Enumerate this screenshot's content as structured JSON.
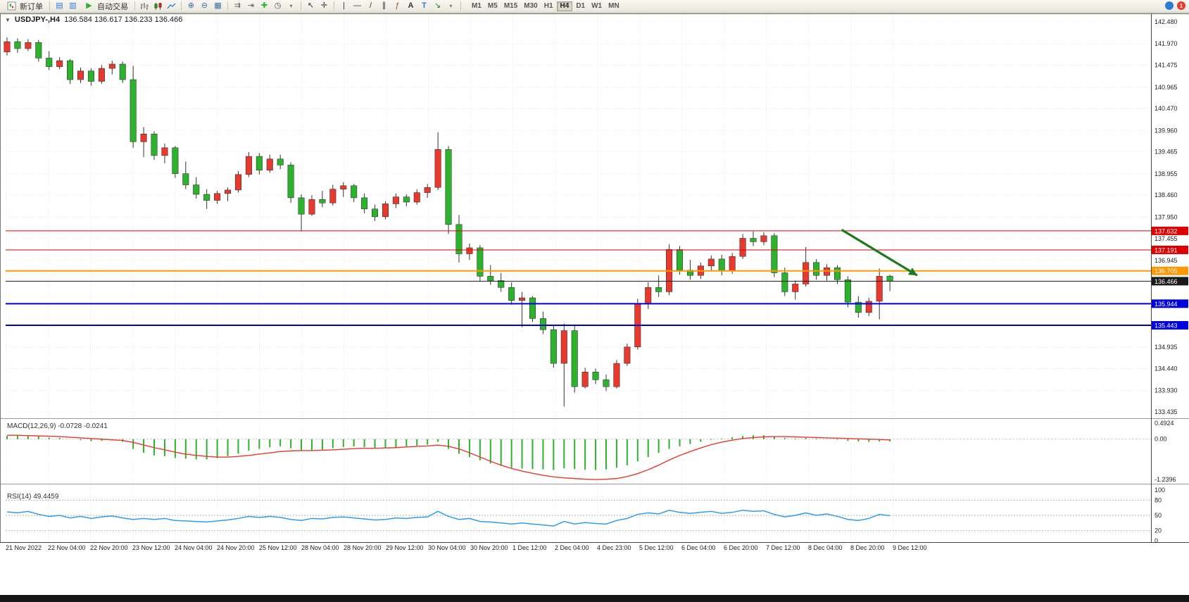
{
  "toolbar": {
    "new_order_label": "新订单",
    "autotrading_label": "自动交易",
    "timeframes": [
      "M1",
      "M5",
      "M15",
      "M30",
      "H1",
      "H4",
      "D1",
      "W1",
      "MN"
    ],
    "active_timeframe": "H4",
    "badge_count": "1"
  },
  "chart": {
    "title_text": "USDJPY-,H4",
    "ohlc_text": "136.584 136.617 136.233 136.466"
  },
  "colors": {
    "bull": "#e8392f",
    "bear": "#2db22d",
    "wick": "#333333",
    "grid": "#e8e8e8",
    "macd_hist": "#2db22d",
    "macd_signal": "#e8392f",
    "rsi_line": "#2e9df0",
    "arrow": "#1f7a1f"
  },
  "chart_data": {
    "type": "candlestick",
    "symbol": "USDJPY-",
    "timeframe": "H4",
    "current_ohlc": {
      "open": 136.584,
      "high": 136.617,
      "low": 136.233,
      "close": 136.466
    },
    "price_axis_ticks": [
      "142.480",
      "141.970",
      "141.475",
      "140.965",
      "140.470",
      "139.960",
      "139.465",
      "138.955",
      "138.460",
      "137.950",
      "137.455",
      "136.945",
      "136.450",
      "135.940",
      "135.445",
      "134.935",
      "134.440",
      "133.930",
      "133.435"
    ],
    "time_labels": [
      "21 Nov 2022",
      "22 Nov 04:00",
      "22 Nov 20:00",
      "23 Nov 12:00",
      "24 Nov 04:00",
      "24 Nov 20:00",
      "25 Nov 12:00",
      "28 Nov 04:00",
      "28 Nov 20:00",
      "29 Nov 12:00",
      "30 Nov 04:00",
      "30 Nov 20:00",
      "1 Dec 12:00",
      "2 Dec 04:00",
      "4 Dec 23:00",
      "5 Dec 12:00",
      "6 Dec 04:00",
      "6 Dec 20:00",
      "7 Dec 12:00",
      "8 Dec 04:00",
      "8 Dec 20:00",
      "9 Dec 12:00"
    ],
    "hlines": [
      {
        "price": 137.632,
        "label": "137.632",
        "color": "#dd0000",
        "width": 1
      },
      {
        "price": 137.191,
        "label": "137.191",
        "color": "#dd0000",
        "width": 1
      },
      {
        "price": 136.705,
        "label": "136.705",
        "color": "#ff9800",
        "width": 2
      },
      {
        "price": 136.466,
        "label": "136.466",
        "color": "#1a1a1a",
        "width": 1
      },
      {
        "price": 135.944,
        "label": "135.944",
        "color": "#0000dd",
        "width": 2
      },
      {
        "price": 135.443,
        "label": "135.443",
        "color": "#0000dd",
        "width": 2
      }
    ],
    "arrow": {
      "from_index": 79.4,
      "from_price": 137.66,
      "to_index": 86.6,
      "to_price": 136.6
    },
    "candles": [
      [
        141.78,
        142.12,
        141.7,
        142.02
      ],
      [
        142.02,
        142.1,
        141.76,
        141.86
      ],
      [
        141.86,
        142.08,
        141.8,
        142.0
      ],
      [
        142.0,
        142.06,
        141.56,
        141.64
      ],
      [
        141.64,
        141.8,
        141.36,
        141.44
      ],
      [
        141.44,
        141.66,
        141.38,
        141.58
      ],
      [
        141.58,
        141.62,
        141.04,
        141.14
      ],
      [
        141.14,
        141.42,
        141.06,
        141.34
      ],
      [
        141.34,
        141.4,
        141.0,
        141.1
      ],
      [
        141.1,
        141.48,
        141.04,
        141.4
      ],
      [
        141.4,
        141.58,
        141.26,
        141.5
      ],
      [
        141.5,
        141.56,
        141.06,
        141.14
      ],
      [
        141.14,
        141.46,
        139.56,
        139.7
      ],
      [
        139.7,
        140.04,
        139.34,
        139.88
      ],
      [
        139.88,
        139.94,
        139.28,
        139.38
      ],
      [
        139.38,
        139.66,
        139.2,
        139.56
      ],
      [
        139.56,
        139.6,
        138.86,
        138.96
      ],
      [
        138.96,
        139.24,
        138.6,
        138.7
      ],
      [
        138.7,
        138.88,
        138.38,
        138.48
      ],
      [
        138.48,
        138.6,
        138.14,
        138.34
      ],
      [
        138.34,
        138.56,
        138.26,
        138.5
      ],
      [
        138.5,
        138.64,
        138.32,
        138.58
      ],
      [
        138.58,
        139.02,
        138.52,
        138.94
      ],
      [
        138.94,
        139.46,
        138.88,
        139.36
      ],
      [
        139.36,
        139.44,
        138.94,
        139.04
      ],
      [
        139.04,
        139.4,
        138.98,
        139.3
      ],
      [
        139.3,
        139.4,
        139.06,
        139.16
      ],
      [
        139.16,
        139.22,
        138.28,
        138.4
      ],
      [
        138.4,
        138.48,
        137.62,
        138.02
      ],
      [
        138.02,
        138.46,
        137.98,
        138.36
      ],
      [
        138.36,
        138.56,
        138.18,
        138.28
      ],
      [
        138.28,
        138.7,
        138.22,
        138.6
      ],
      [
        138.6,
        138.76,
        138.42,
        138.68
      ],
      [
        138.68,
        138.72,
        138.3,
        138.4
      ],
      [
        138.4,
        138.5,
        138.04,
        138.14
      ],
      [
        138.14,
        138.24,
        137.86,
        137.96
      ],
      [
        137.96,
        138.32,
        137.9,
        138.26
      ],
      [
        138.26,
        138.5,
        138.16,
        138.42
      ],
      [
        138.42,
        138.48,
        138.2,
        138.3
      ],
      [
        138.3,
        138.6,
        138.24,
        138.52
      ],
      [
        138.52,
        138.72,
        138.4,
        138.64
      ],
      [
        138.64,
        139.92,
        138.58,
        139.52
      ],
      [
        139.52,
        139.6,
        137.56,
        137.78
      ],
      [
        137.78,
        138.0,
        136.9,
        137.1
      ],
      [
        137.1,
        137.34,
        136.96,
        137.24
      ],
      [
        137.24,
        137.3,
        136.46,
        136.58
      ],
      [
        136.58,
        136.84,
        136.38,
        136.48
      ],
      [
        136.48,
        136.66,
        136.22,
        136.32
      ],
      [
        136.32,
        136.44,
        135.92,
        136.02
      ],
      [
        136.02,
        136.22,
        135.4,
        136.08
      ],
      [
        136.08,
        136.12,
        135.52,
        135.6
      ],
      [
        135.6,
        135.76,
        135.24,
        135.34
      ],
      [
        135.34,
        135.46,
        134.46,
        134.56
      ],
      [
        134.56,
        135.48,
        133.56,
        135.32
      ],
      [
        135.32,
        135.46,
        133.88,
        134.02
      ],
      [
        134.02,
        134.46,
        133.98,
        134.36
      ],
      [
        134.36,
        134.44,
        134.08,
        134.18
      ],
      [
        134.18,
        134.3,
        133.92,
        134.02
      ],
      [
        134.02,
        134.64,
        133.98,
        134.56
      ],
      [
        134.56,
        135.02,
        134.5,
        134.94
      ],
      [
        134.94,
        136.06,
        134.88,
        135.94
      ],
      [
        135.94,
        136.44,
        135.82,
        136.32
      ],
      [
        136.32,
        136.6,
        136.1,
        136.22
      ],
      [
        136.22,
        137.32,
        136.14,
        137.2
      ],
      [
        137.2,
        137.28,
        136.62,
        136.72
      ],
      [
        136.72,
        136.96,
        136.5,
        136.6
      ],
      [
        136.6,
        136.9,
        136.52,
        136.82
      ],
      [
        136.82,
        137.06,
        136.7,
        136.98
      ],
      [
        136.98,
        137.08,
        136.6,
        136.7
      ],
      [
        136.7,
        137.12,
        136.64,
        137.04
      ],
      [
        137.04,
        137.56,
        136.98,
        137.46
      ],
      [
        137.46,
        137.62,
        137.28,
        137.38
      ],
      [
        137.38,
        137.6,
        137.3,
        137.52
      ],
      [
        137.52,
        137.58,
        136.56,
        136.66
      ],
      [
        136.66,
        136.78,
        136.12,
        136.22
      ],
      [
        136.22,
        136.48,
        136.04,
        136.4
      ],
      [
        136.4,
        137.26,
        136.34,
        136.9
      ],
      [
        136.9,
        136.98,
        136.5,
        136.6
      ],
      [
        136.6,
        136.86,
        136.48,
        136.78
      ],
      [
        136.78,
        136.84,
        136.4,
        136.5
      ],
      [
        136.5,
        136.58,
        135.86,
        135.98
      ],
      [
        135.98,
        136.12,
        135.62,
        135.74
      ],
      [
        135.74,
        136.08,
        135.66,
        136.0
      ],
      [
        136.0,
        136.76,
        135.58,
        136.58
      ],
      [
        136.584,
        136.617,
        136.233,
        136.466
      ]
    ],
    "macd": {
      "label_text": "MACD(12,26,9) -0.0728 -0.0241",
      "scale_max": 0.4924,
      "scale_min": -1.2396,
      "axis_labels": [
        "0.4924",
        "0.00",
        "-1.2396"
      ],
      "hist": [
        0.1,
        0.12,
        0.1,
        0.08,
        0.05,
        0.04,
        0.0,
        -0.03,
        -0.06,
        -0.05,
        -0.04,
        -0.08,
        -0.3,
        -0.42,
        -0.5,
        -0.52,
        -0.58,
        -0.6,
        -0.62,
        -0.62,
        -0.58,
        -0.52,
        -0.45,
        -0.35,
        -0.3,
        -0.25,
        -0.22,
        -0.28,
        -0.35,
        -0.35,
        -0.33,
        -0.28,
        -0.24,
        -0.22,
        -0.25,
        -0.28,
        -0.28,
        -0.25,
        -0.22,
        -0.2,
        -0.17,
        -0.08,
        -0.3,
        -0.45,
        -0.55,
        -0.65,
        -0.75,
        -0.82,
        -0.88,
        -0.9,
        -0.92,
        -0.93,
        -0.95,
        -0.9,
        -0.92,
        -0.94,
        -0.95,
        -0.93,
        -0.88,
        -0.8,
        -0.68,
        -0.55,
        -0.42,
        -0.3,
        -0.22,
        -0.15,
        -0.08,
        -0.02,
        0.02,
        0.06,
        0.1,
        0.12,
        0.12,
        0.08,
        0.04,
        0.02,
        0.04,
        0.02,
        0.0,
        -0.02,
        -0.05,
        -0.07,
        -0.08,
        -0.07,
        -0.0728
      ],
      "signal": [
        0.12,
        0.12,
        0.11,
        0.1,
        0.09,
        0.08,
        0.06,
        0.04,
        0.02,
        0.0,
        -0.02,
        -0.04,
        -0.1,
        -0.18,
        -0.26,
        -0.33,
        -0.4,
        -0.46,
        -0.5,
        -0.53,
        -0.55,
        -0.55,
        -0.53,
        -0.5,
        -0.46,
        -0.42,
        -0.38,
        -0.36,
        -0.35,
        -0.35,
        -0.34,
        -0.33,
        -0.31,
        -0.29,
        -0.28,
        -0.28,
        -0.27,
        -0.26,
        -0.24,
        -0.22,
        -0.21,
        -0.18,
        -0.22,
        -0.3,
        -0.42,
        -0.55,
        -0.68,
        -0.8,
        -0.9,
        -0.98,
        -1.05,
        -1.11,
        -1.16,
        -1.19,
        -1.21,
        -1.23,
        -1.24,
        -1.23,
        -1.21,
        -1.15,
        -1.06,
        -0.94,
        -0.8,
        -0.64,
        -0.5,
        -0.38,
        -0.27,
        -0.17,
        -0.09,
        -0.03,
        0.02,
        0.05,
        0.07,
        0.08,
        0.08,
        0.07,
        0.06,
        0.05,
        0.04,
        0.03,
        0.02,
        0.01,
        0.0,
        -0.01,
        -0.0241
      ]
    },
    "rsi": {
      "label_text": "RSI(14) 49.4459",
      "levels": [
        80,
        50,
        20
      ],
      "axis_labels": [
        "100",
        "80",
        "50",
        "20",
        "0"
      ],
      "values": [
        57,
        55,
        58,
        52,
        48,
        50,
        45,
        48,
        44,
        47,
        49,
        45,
        42,
        44,
        42,
        44,
        40,
        39,
        38,
        37,
        39,
        41,
        44,
        48,
        46,
        48,
        46,
        42,
        40,
        44,
        43,
        46,
        47,
        45,
        43,
        41,
        42,
        45,
        44,
        46,
        47,
        58,
        48,
        42,
        44,
        38,
        37,
        35,
        33,
        35,
        33,
        31,
        29,
        38,
        33,
        36,
        34,
        33,
        40,
        44,
        52,
        55,
        53,
        60,
        56,
        54,
        56,
        58,
        54,
        56,
        60,
        58,
        59,
        52,
        47,
        50,
        55,
        50,
        53,
        48,
        42,
        40,
        44,
        52,
        49.4
      ]
    }
  }
}
